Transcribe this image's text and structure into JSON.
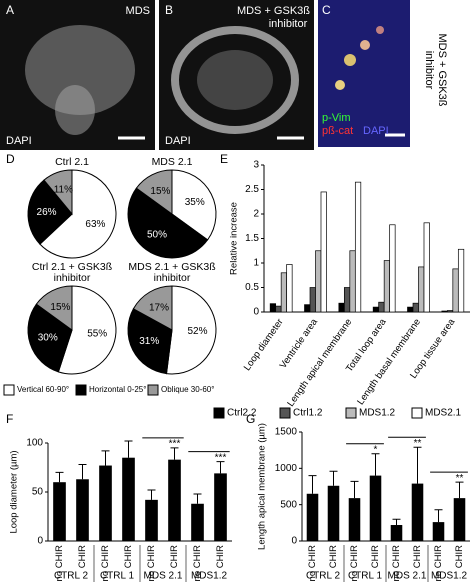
{
  "images": [
    {
      "panel": "A",
      "labels": [
        "MDS",
        "DAPI"
      ]
    },
    {
      "panel": "B",
      "labels": [
        "MDS + GSK3ß",
        "inhibitor",
        "DAPI"
      ]
    },
    {
      "panel": "C",
      "labels": [
        "p-Vim",
        "pß-cat",
        "DAPI"
      ],
      "side_label": [
        "MDS + GSK3ß",
        "inhibitor"
      ]
    }
  ],
  "chart_data": [
    {
      "type": "pie",
      "panel": "D",
      "categories": [
        "Vertical 60-90°",
        "Horizontal 0-25°",
        "Oblique 30-60°"
      ],
      "colors": [
        "#ffffff",
        "#000000",
        "#999999"
      ],
      "pies": [
        {
          "title": [
            "Ctrl 2.1"
          ],
          "values": [
            63,
            26,
            11
          ],
          "value_labels": [
            "63%",
            "26%",
            "11%"
          ]
        },
        {
          "title": [
            "MDS 2.1"
          ],
          "values": [
            35,
            50,
            15
          ],
          "value_labels": [
            "35%",
            "50%",
            "15%"
          ]
        },
        {
          "title": [
            "Ctrl 2.1 + GSK3ß",
            "inhibitor"
          ],
          "values": [
            55,
            30,
            15
          ],
          "value_labels": [
            "55%",
            "30%",
            "15%"
          ]
        },
        {
          "title": [
            "MDS 2.1 + GSK3ß",
            "inhibitor"
          ],
          "values": [
            52,
            31,
            17
          ],
          "value_labels": [
            "52%",
            "31%",
            "17%"
          ]
        }
      ]
    },
    {
      "type": "bar",
      "panel": "E",
      "y_label": "Relative increase",
      "categories": [
        "Loop diameter",
        "Ventricle area",
        "Length apical membrane",
        "Total loop area",
        "Length basal membrane",
        "Loop tissue area"
      ],
      "series": [
        {
          "name": "Ctrl2.2",
          "color": "#000000",
          "values": [
            0.17,
            0.15,
            0.18,
            0.1,
            0.1,
            0.02
          ]
        },
        {
          "name": "Ctrl1.2",
          "color": "#555555",
          "values": [
            0.12,
            0.5,
            0.5,
            0.2,
            0.18,
            0.03
          ]
        },
        {
          "name": "MDS1.2",
          "color": "#bbbbbb",
          "values": [
            0.8,
            1.25,
            1.25,
            1.05,
            0.92,
            0.88
          ]
        },
        {
          "name": "MDS2.1",
          "color": "#ffffff",
          "values": [
            0.97,
            2.45,
            2.65,
            1.78,
            1.82,
            1.28
          ]
        }
      ],
      "ylim": [
        0,
        3
      ],
      "yticks": [
        0,
        0.5,
        1,
        1.5,
        2,
        2.5,
        3
      ]
    },
    {
      "type": "bar",
      "panel": "F",
      "y_label": "Loop diameter (µm)",
      "categories": [
        "no CHIR",
        "CHIR",
        "no CHIR",
        "CHIR",
        "no CHIR",
        "CHIR",
        "no CHIR",
        "CHIR"
      ],
      "groups": [
        "CTRL 2",
        "CTRL 1",
        "MDS 2.1",
        "MDS1.2"
      ],
      "significance": [
        null,
        null,
        "***",
        "***"
      ],
      "values": [
        60,
        63,
        77,
        85,
        42,
        83,
        38,
        69
      ],
      "errors": [
        10,
        15,
        15,
        17,
        10,
        12,
        10,
        12
      ],
      "color": "#000000",
      "ylim": [
        0,
        100
      ],
      "yticks": [
        0,
        50,
        100
      ]
    },
    {
      "type": "bar",
      "panel": "G",
      "y_label": "Length apical membrane (µm)",
      "categories": [
        "no CHIR",
        "CHIR",
        "no CHIR",
        "CHIR",
        "no CHIR",
        "CHIR",
        "no CHIR",
        "CHIR"
      ],
      "groups": [
        "CTRL 2",
        "CTRL 1",
        "MDS 2.1",
        "MDS1.2"
      ],
      "significance": [
        null,
        "*",
        "**",
        "**"
      ],
      "values": [
        650,
        760,
        590,
        900,
        220,
        790,
        260,
        590
      ],
      "errors": [
        250,
        200,
        230,
        300,
        80,
        500,
        170,
        220
      ],
      "color": "#000000",
      "ylim": [
        0,
        1500
      ],
      "yticks": [
        0,
        500,
        1000,
        1500
      ]
    }
  ]
}
